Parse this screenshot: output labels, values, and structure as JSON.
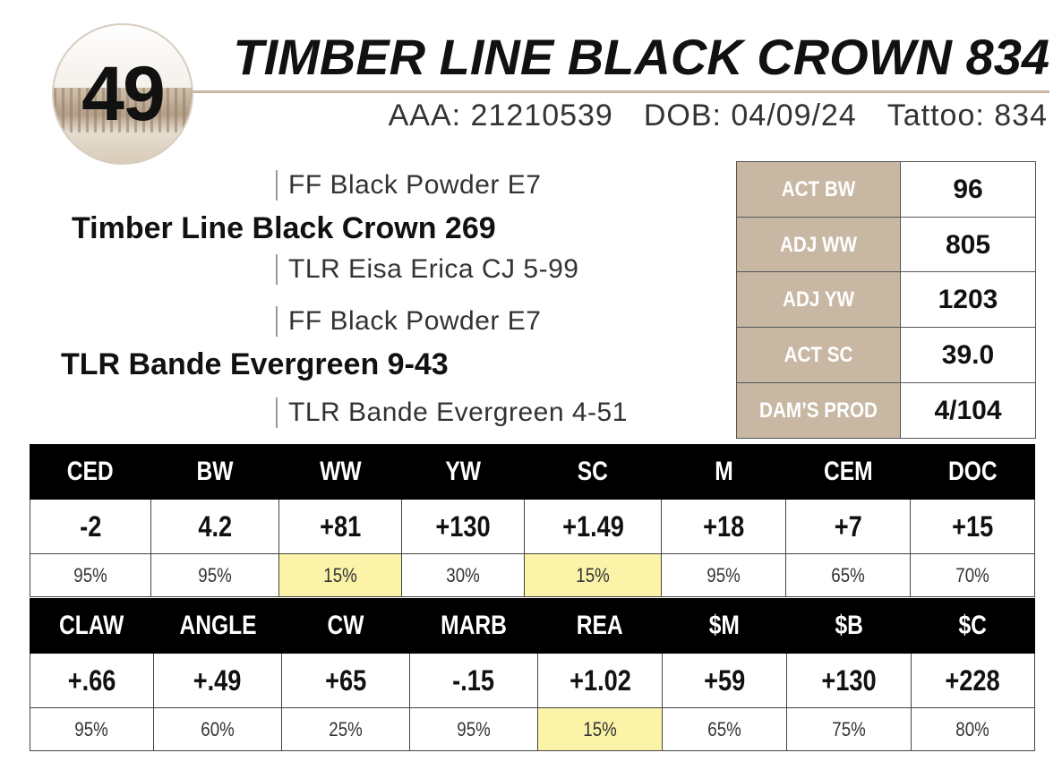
{
  "lot_number": "49",
  "animal": {
    "name": "TIMBER LINE BLACK CROWN 834",
    "aaa": "AAA: 21210539",
    "dob": "DOB: 04/09/24",
    "tattoo": "Tattoo: 834"
  },
  "pedigree": {
    "sire": "Timber Line Black Crown 269",
    "sire_sire": "FF Black Powder E7",
    "sire_dam": "TLR Eisa Erica CJ 5-99",
    "dam": "TLR Bande Evergreen 9-43",
    "dam_sire": "FF Black Powder E7",
    "dam_dam": "TLR Bande Evergreen 4-51"
  },
  "stats": [
    {
      "label": "ACT BW",
      "value": "96"
    },
    {
      "label": "ADJ WW",
      "value": "805"
    },
    {
      "label": "ADJ YW",
      "value": "1203"
    },
    {
      "label": "ACT SC",
      "value": "39.0"
    },
    {
      "label": "DAM’S PROD",
      "value": "4/104"
    }
  ],
  "epd_table_1": {
    "headers": [
      "CED",
      "BW",
      "WW",
      "YW",
      "SC",
      "M",
      "CEM",
      "DOC"
    ],
    "values": [
      "-2",
      "4.2",
      "+81",
      "+130",
      "+1.49",
      "+18",
      "+7",
      "+15"
    ],
    "percentiles": [
      "95%",
      "95%",
      "15%",
      "30%",
      "15%",
      "95%",
      "65%",
      "70%"
    ]
  },
  "epd_table_2": {
    "headers": [
      "CLAW",
      "ANGLE",
      "CW",
      "MARB",
      "REA",
      "$M",
      "$B",
      "$C"
    ],
    "values": [
      "+.66",
      "+.49",
      "+65",
      "-.15",
      "+1.02",
      "+59",
      "+130",
      "+228"
    ],
    "percentiles": [
      "95%",
      "60%",
      "25%",
      "95%",
      "15%",
      "65%",
      "75%",
      "80%"
    ]
  },
  "colors": {
    "tan": "#c8b8a3",
    "highlight": "#fbf3a8",
    "header_bg": "#000000"
  }
}
